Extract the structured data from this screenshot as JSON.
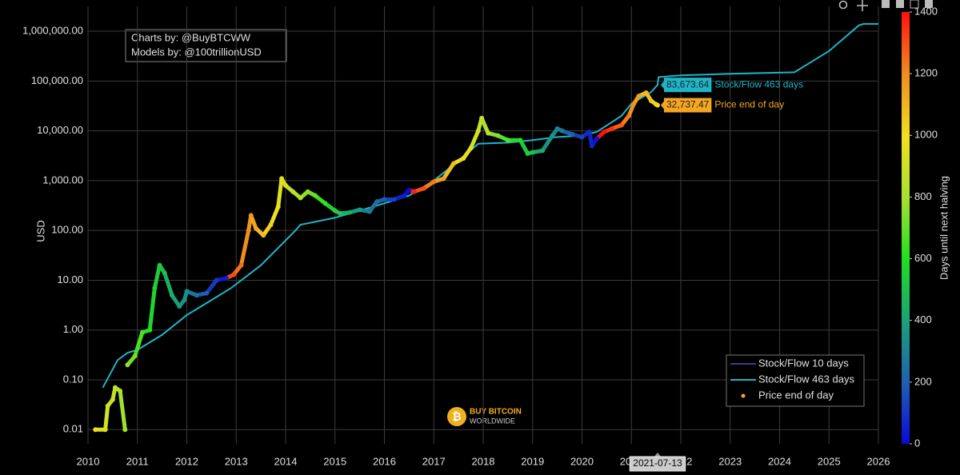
{
  "chart_data": {
    "type": "scatter",
    "y_label": "USD",
    "log_y": true,
    "grid": true,
    "xlim": [
      2010,
      2026
    ],
    "xticks": [
      2010,
      2011,
      2012,
      2013,
      2014,
      2015,
      2016,
      2017,
      2018,
      2019,
      2020,
      2021,
      2022,
      2023,
      2024,
      2025,
      2026
    ],
    "ylim": [
      0.0052,
      3150000
    ],
    "yticks": [
      {
        "value": 0.01,
        "label": "0.01"
      },
      {
        "value": 0.1,
        "label": "0.10"
      },
      {
        "value": 1,
        "label": "1.00"
      },
      {
        "value": 10,
        "label": "10.00"
      },
      {
        "value": 100,
        "label": "100.00"
      },
      {
        "value": 1000,
        "label": "1,000.00"
      },
      {
        "value": 10000,
        "label": "10,000.00"
      },
      {
        "value": 100000,
        "label": "100,000.00"
      },
      {
        "value": 1000000,
        "label": "1,000,000.00"
      }
    ],
    "annotations": [
      "Charts by: @BuyBTCWW",
      "Models by: @100trillionUSD"
    ],
    "logo": [
      "BUY BITCOIN",
      "WORLDWIDE"
    ],
    "legend_position": "bottom-right",
    "colorbar": {
      "title": "Days until next halving",
      "lim": [
        0,
        1400
      ],
      "ticks": [
        0,
        200,
        400,
        600,
        800,
        1000,
        1200,
        1400
      ],
      "colorscale": [
        [
          0,
          "#0a0ad8"
        ],
        [
          0.14,
          "#1f5fb0"
        ],
        [
          0.28,
          "#1aa078"
        ],
        [
          0.43,
          "#20e020"
        ],
        [
          0.57,
          "#a8e030"
        ],
        [
          0.71,
          "#f0e020"
        ],
        [
          0.86,
          "#f08a20"
        ],
        [
          1,
          "#ff1010"
        ]
      ]
    },
    "series": [
      {
        "name": "Stock/Flow 10 days",
        "color": "#3a3a8c",
        "mode": "lines",
        "x": [],
        "values": []
      },
      {
        "name": "Stock/Flow 463 days",
        "color": "#1fb5c8",
        "mode": "lines",
        "x": [
          2010.3,
          2010.6,
          2010.8,
          2011.0,
          2011.5,
          2012.0,
          2012.5,
          2012.9,
          2013.5,
          2014.2,
          2014.3,
          2015.0,
          2015.5,
          2016.0,
          2016.5,
          2017.0,
          2017.5,
          2017.9,
          2018.5,
          2019.0,
          2019.5,
          2020.0,
          2020.3,
          2020.8,
          2021.0,
          2021.4,
          2021.53,
          2021.55,
          2022.0,
          2023.0,
          2024.3,
          2025.0,
          2025.6,
          2025.7,
          2026.0
        ],
        "values": [
          0.07,
          0.25,
          0.35,
          0.4,
          0.8,
          2,
          4,
          7,
          20,
          100,
          130,
          180,
          250,
          350,
          500,
          1000,
          2500,
          5500,
          5800,
          6500,
          7500,
          8000,
          9500,
          20000,
          35000,
          60000,
          83673.64,
          120000,
          130000,
          140000,
          150000,
          400000,
          1300000,
          1400000,
          1400000
        ]
      },
      {
        "name": "Price end of day",
        "color": "#f5a623",
        "mode": "markers",
        "x": [
          2010.15,
          2010.35,
          2010.4,
          2010.5,
          2010.55,
          2010.65,
          2010.75,
          2010.8,
          2010.95,
          2011.1,
          2011.25,
          2011.35,
          2011.45,
          2011.55,
          2011.7,
          2011.85,
          2011.95,
          2012.0,
          2012.2,
          2012.4,
          2012.6,
          2012.8,
          2012.95,
          2013.1,
          2013.25,
          2013.3,
          2013.4,
          2013.55,
          2013.7,
          2013.85,
          2013.92,
          2014.0,
          2014.15,
          2014.3,
          2014.45,
          2014.6,
          2014.8,
          2015.0,
          2015.1,
          2015.3,
          2015.5,
          2015.7,
          2015.85,
          2016.0,
          2016.2,
          2016.4,
          2016.5,
          2016.6,
          2016.8,
          2017.0,
          2017.2,
          2017.4,
          2017.6,
          2017.75,
          2017.9,
          2017.97,
          2018.1,
          2018.3,
          2018.5,
          2018.75,
          2018.9,
          2019.0,
          2019.2,
          2019.4,
          2019.5,
          2019.6,
          2019.8,
          2020.0,
          2020.15,
          2020.2,
          2020.3,
          2020.45,
          2020.6,
          2020.8,
          2020.95,
          2021.05,
          2021.15,
          2021.3,
          2021.4,
          2021.5,
          2021.53
        ],
        "values": [
          0.01,
          0.01,
          0.03,
          0.04,
          0.07,
          0.06,
          0.01,
          0.2,
          0.3,
          0.9,
          1.0,
          7,
          20,
          14,
          5,
          3,
          4,
          6,
          5,
          5.5,
          10,
          11,
          13,
          20,
          100,
          200,
          110,
          80,
          130,
          300,
          1100,
          800,
          600,
          450,
          600,
          500,
          350,
          250,
          220,
          230,
          260,
          240,
          380,
          420,
          420,
          500,
          650,
          600,
          700,
          950,
          1100,
          2200,
          2800,
          4500,
          10000,
          18000,
          9000,
          8000,
          6500,
          6500,
          3500,
          3700,
          4000,
          8000,
          11000,
          10000,
          8500,
          7500,
          9500,
          5000,
          7000,
          9500,
          11000,
          13000,
          20000,
          35000,
          50000,
          58000,
          40000,
          34000,
          32737.47
        ],
        "days": [
          1007,
          934,
          916,
          880,
          861,
          825,
          788,
          770,
          715,
          661,
          606,
          569,
          533,
          496,
          442,
          387,
          350,
          332,
          259,
          186,
          113,
          40,
          1303,
          1248,
          1194,
          1175,
          1139,
          1084,
          1029,
          975,
          949,
          920,
          865,
          810,
          756,
          701,
          628,
          555,
          518,
          445,
          372,
          299,
          245,
          190,
          117,
          44,
          7,
          1372,
          1299,
          1226,
          1153,
          1080,
          1007,
          953,
          898,
          872,
          825,
          752,
          679,
          588,
          533,
          496,
          423,
          350,
          314,
          277,
          204,
          131,
          77,
          58,
          22,
          1400,
          1351,
          1278,
          1223,
          1186,
          1150,
          1095,
          1059,
          1022,
          1011
        ]
      }
    ],
    "hover": {
      "x_label": "2021-07-13",
      "x": 2021.53,
      "items": [
        {
          "series": 1,
          "value": 83673.64,
          "value_label": "83,673.64"
        },
        {
          "series": 2,
          "value": 32737.47,
          "value_label": "32,737.47"
        }
      ]
    }
  }
}
